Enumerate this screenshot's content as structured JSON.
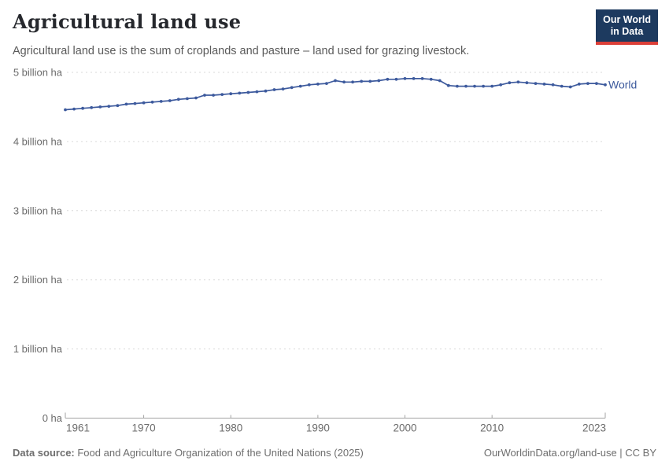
{
  "header": {
    "title": "Agricultural land use",
    "subtitle": "Agricultural land use is the sum of croplands and pasture – land used for grazing livestock.",
    "logo": {
      "line1": "Our World",
      "line2": "in Data"
    }
  },
  "colors": {
    "line": "#3d5a9d",
    "grid": "#dadada",
    "axis": "#a3a3a3",
    "axis_text": "#6b6b6b",
    "logo_bg": "#1d3a5f",
    "logo_accent": "#dc3f38",
    "title_text": "#26282d",
    "subtitle_text": "#5a5a5a"
  },
  "chart_data": {
    "type": "line",
    "title": "Agricultural land use",
    "xlabel": "",
    "ylabel": "",
    "unit": "billion ha",
    "ylim": [
      0,
      5
    ],
    "grid": "horizontal-dashed",
    "legend_position": "end-of-line",
    "x_ticks": [
      1961,
      1970,
      1980,
      1990,
      2000,
      2010,
      2023
    ],
    "y_ticks": [
      {
        "value": 0,
        "label": "0 ha"
      },
      {
        "value": 1,
        "label": "1 billion ha"
      },
      {
        "value": 2,
        "label": "2 billion ha"
      },
      {
        "value": 3,
        "label": "3 billion ha"
      },
      {
        "value": 4,
        "label": "4 billion ha"
      },
      {
        "value": 5,
        "label": "5 billion ha"
      }
    ],
    "x": [
      1961,
      1962,
      1963,
      1964,
      1965,
      1966,
      1967,
      1968,
      1969,
      1970,
      1971,
      1972,
      1973,
      1974,
      1975,
      1976,
      1977,
      1978,
      1979,
      1980,
      1981,
      1982,
      1983,
      1984,
      1985,
      1986,
      1987,
      1988,
      1989,
      1990,
      1991,
      1992,
      1993,
      1994,
      1995,
      1996,
      1997,
      1998,
      1999,
      2000,
      2001,
      2002,
      2003,
      2004,
      2005,
      2006,
      2007,
      2008,
      2009,
      2010,
      2011,
      2012,
      2013,
      2014,
      2015,
      2016,
      2017,
      2018,
      2019,
      2020,
      2021,
      2022,
      2023
    ],
    "series": [
      {
        "name": "World",
        "color": "#3d5a9d",
        "values": [
          4.46,
          4.47,
          4.48,
          4.49,
          4.5,
          4.51,
          4.52,
          4.54,
          4.55,
          4.56,
          4.57,
          4.58,
          4.59,
          4.61,
          4.62,
          4.63,
          4.67,
          4.67,
          4.68,
          4.69,
          4.7,
          4.71,
          4.72,
          4.73,
          4.75,
          4.76,
          4.78,
          4.8,
          4.82,
          4.83,
          4.84,
          4.88,
          4.86,
          4.86,
          4.87,
          4.87,
          4.88,
          4.9,
          4.9,
          4.91,
          4.91,
          4.91,
          4.9,
          4.88,
          4.81,
          4.8,
          4.8,
          4.8,
          4.8,
          4.8,
          4.82,
          4.85,
          4.86,
          4.85,
          4.84,
          4.83,
          4.82,
          4.8,
          4.79,
          4.83,
          4.84,
          4.84,
          4.82
        ]
      }
    ]
  },
  "footer": {
    "datasource_label": "Data source:",
    "datasource_value": " Food and Agriculture Organization of the United Nations (2025)",
    "link": "OurWorldinData.org/land-use | CC BY"
  }
}
